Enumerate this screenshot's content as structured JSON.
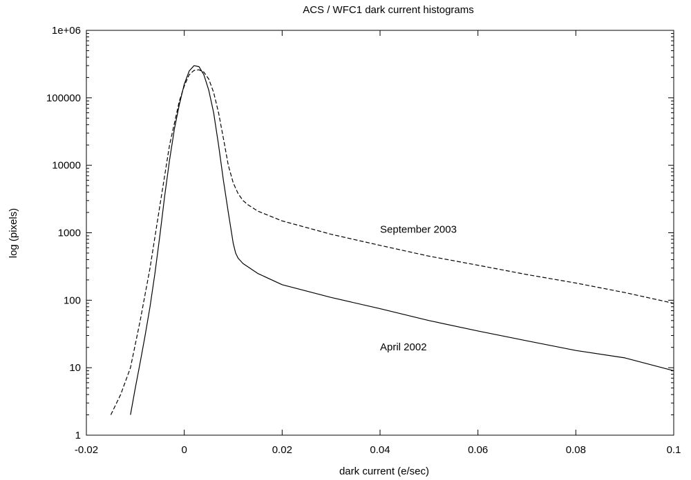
{
  "chart_data": {
    "type": "line",
    "title": "ACS / WFC1 dark current histograms",
    "xlabel": "dark current (e/sec)",
    "ylabel": "log (pixels)",
    "xlim": [
      -0.02,
      0.1
    ],
    "ylim": [
      1,
      1000000
    ],
    "y_scale": "log",
    "grid": false,
    "x_ticks": [
      -0.02,
      0,
      0.02,
      0.04,
      0.06,
      0.08,
      0.1
    ],
    "x_tick_labels": [
      "-0.02",
      "0",
      "0.02",
      "0.04",
      "0.06",
      "0.08",
      "0.1"
    ],
    "y_ticks": [
      1,
      10,
      100,
      1000,
      10000,
      100000,
      1000000
    ],
    "y_tick_labels": [
      "1",
      "10",
      "100",
      "1000",
      "10000",
      "100000",
      "1e+06"
    ],
    "series": [
      {
        "name": "September 2003",
        "style": "dashed",
        "x": [
          -0.015,
          -0.013,
          -0.011,
          -0.009,
          -0.007,
          -0.005,
          -0.003,
          -0.001,
          0.0,
          0.001,
          0.002,
          0.003,
          0.004,
          0.005,
          0.006,
          0.007,
          0.008,
          0.009,
          0.01,
          0.011,
          0.012,
          0.013,
          0.015,
          0.02,
          0.03,
          0.04,
          0.05,
          0.06,
          0.07,
          0.08,
          0.09,
          0.1
        ],
        "y": [
          2,
          4,
          10,
          50,
          300,
          2500,
          20000,
          90000,
          150000,
          220000,
          255000,
          260000,
          240000,
          190000,
          120000,
          60000,
          25000,
          10000,
          5500,
          3800,
          3000,
          2600,
          2100,
          1500,
          950,
          650,
          450,
          330,
          240,
          180,
          130,
          90
        ],
        "color": "#000000"
      },
      {
        "name": "April 2002",
        "style": "solid",
        "x": [
          -0.011,
          -0.01,
          -0.009,
          -0.008,
          -0.007,
          -0.006,
          -0.005,
          -0.004,
          -0.003,
          -0.002,
          -0.001,
          0.0,
          0.001,
          0.002,
          0.003,
          0.004,
          0.005,
          0.006,
          0.007,
          0.008,
          0.009,
          0.01,
          0.0105,
          0.011,
          0.012,
          0.015,
          0.02,
          0.03,
          0.04,
          0.05,
          0.06,
          0.07,
          0.08,
          0.09,
          0.1
        ],
        "y": [
          2,
          5,
          12,
          30,
          80,
          250,
          900,
          3500,
          12000,
          35000,
          80000,
          160000,
          250000,
          300000,
          290000,
          220000,
          130000,
          60000,
          20000,
          6000,
          2000,
          700,
          500,
          420,
          350,
          250,
          170,
          110,
          75,
          50,
          35,
          25,
          18,
          14,
          9
        ],
        "color": "#000000"
      }
    ],
    "annotations": [
      {
        "text": "September 2003",
        "x": 0.04,
        "y": 1000
      },
      {
        "text": "April 2002",
        "x": 0.04,
        "y": 18
      }
    ]
  }
}
